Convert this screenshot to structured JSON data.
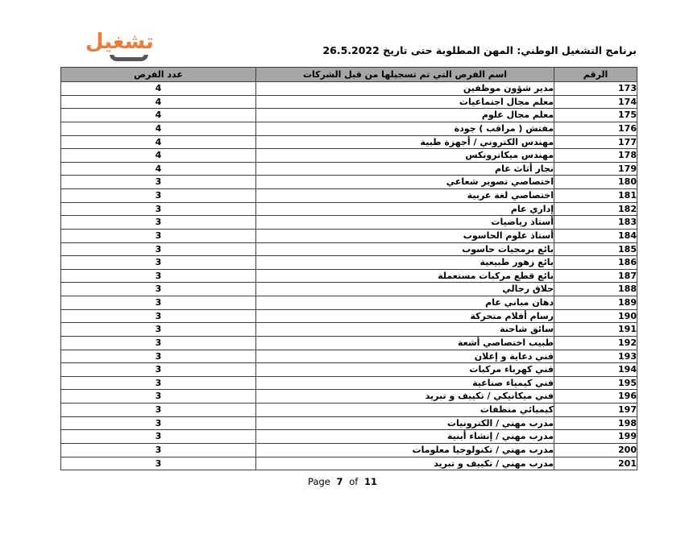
{
  "logo": {
    "text": "تشغيل",
    "orange": "#ED7C3B",
    "frame_gray": "#55565A"
  },
  "header": {
    "title": "برنامج التشغيل الوطني: المهن المطلوبة حتى تاريخ 26.5.2022"
  },
  "table": {
    "header_bg": "#A6A6A6",
    "columns": {
      "number": "الرقم",
      "name": "اسم الفرص التي تم تسجيلها من قبل الشركات",
      "count": "عدد الفرص"
    },
    "rows": [
      {
        "number": "173",
        "name": "مدير شؤون موظفين",
        "count": "4"
      },
      {
        "number": "174",
        "name": "معلم مجال اجتماعيات",
        "count": "4"
      },
      {
        "number": "175",
        "name": "معلم مجال علوم",
        "count": "4"
      },
      {
        "number": "176",
        "name": "مفتش ( مراقب ) جودة",
        "count": "4"
      },
      {
        "number": "177",
        "name": "مهندس الكتروني / أجهزة طبية",
        "count": "4"
      },
      {
        "number": "178",
        "name": "مهندس ميكاترونكس",
        "count": "4"
      },
      {
        "number": "179",
        "name": "نجار أثاث عام",
        "count": "4"
      },
      {
        "number": "180",
        "name": "اختصاصي تصوير شعاعي",
        "count": "3"
      },
      {
        "number": "181",
        "name": "اختصاصي لغة عربية",
        "count": "3"
      },
      {
        "number": "182",
        "name": "إداري عام",
        "count": "3"
      },
      {
        "number": "183",
        "name": "أستاذ رياضيات",
        "count": "3"
      },
      {
        "number": "184",
        "name": "أستاذ علوم الحاسوب",
        "count": "3"
      },
      {
        "number": "185",
        "name": "بائع برمجيات حاسوب",
        "count": "3"
      },
      {
        "number": "186",
        "name": "بائع زهور طبيعية",
        "count": "3"
      },
      {
        "number": "187",
        "name": "بائع قطع مركبات مستعملة",
        "count": "3"
      },
      {
        "number": "188",
        "name": "حلاق رجالي",
        "count": "3"
      },
      {
        "number": "189",
        "name": "دهان مباني عام",
        "count": "3"
      },
      {
        "number": "190",
        "name": "رسام أفلام متحركة",
        "count": "3"
      },
      {
        "number": "191",
        "name": "سائق شاحنة",
        "count": "3"
      },
      {
        "number": "192",
        "name": "طبيب اختصاصي أشعة",
        "count": "3"
      },
      {
        "number": "193",
        "name": "فني دعاية و إعلان",
        "count": "3"
      },
      {
        "number": "194",
        "name": "فني كهرباء مركبات",
        "count": "3"
      },
      {
        "number": "195",
        "name": "فني كيمياء صناعية",
        "count": "3"
      },
      {
        "number": "196",
        "name": "فني ميكانيكي / تكييف و تبريد",
        "count": "3"
      },
      {
        "number": "197",
        "name": "كيميائي منظفات",
        "count": "3"
      },
      {
        "number": "198",
        "name": "مدرب مهني / الكترونيات",
        "count": "3"
      },
      {
        "number": "199",
        "name": "مدرب مهني / إنشاء أبنية",
        "count": "3"
      },
      {
        "number": "200",
        "name": "مدرب مهني / تكنولوجيا معلومات",
        "count": "3"
      },
      {
        "number": "201",
        "name": "مدرب مهني / تكييف و تبريد",
        "count": "3"
      }
    ]
  },
  "footer": {
    "page_word": "Page",
    "page_number": "7",
    "of_word": "of",
    "total_pages": "11"
  }
}
